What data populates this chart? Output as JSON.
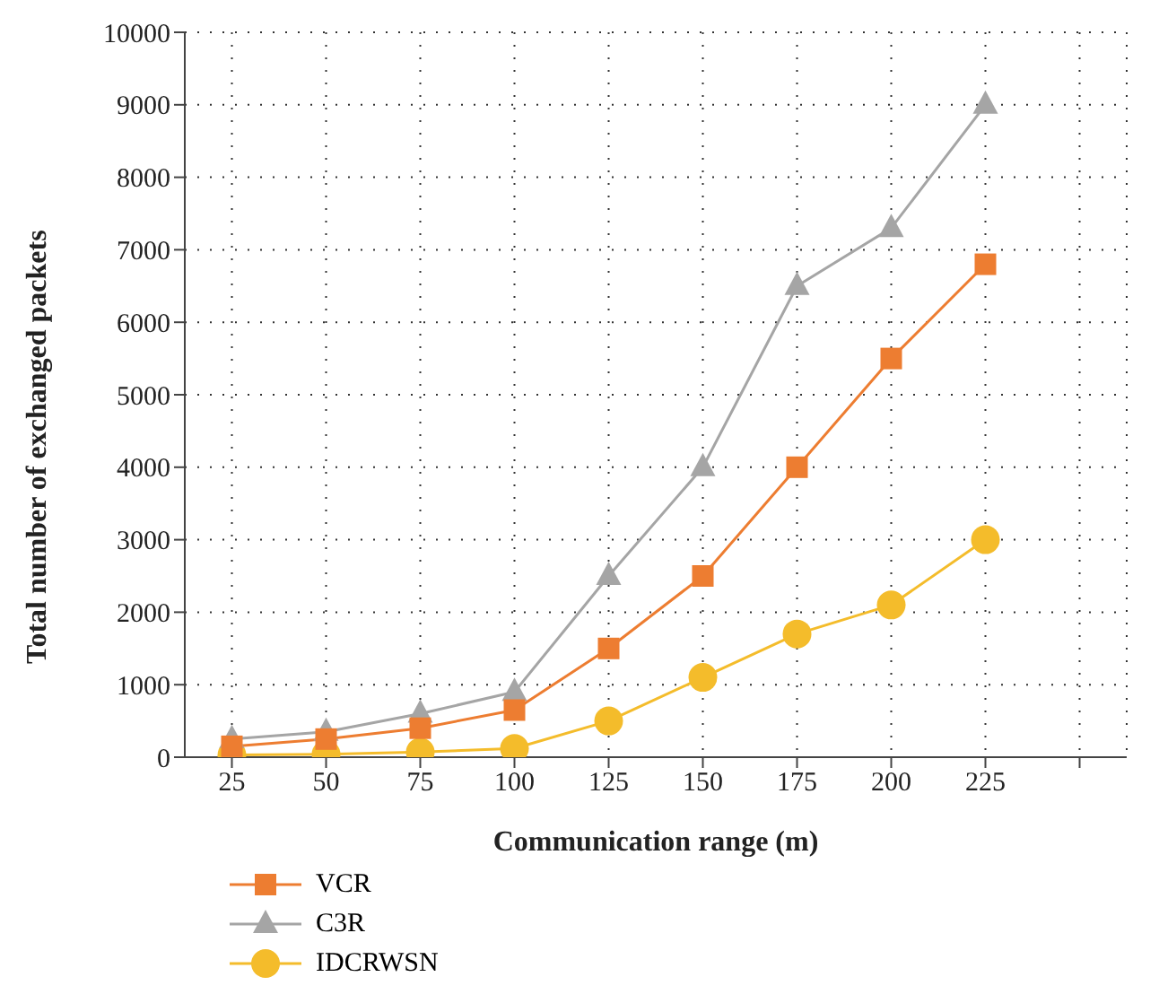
{
  "chart_data": {
    "type": "line",
    "xlabel": "Communication range (m)",
    "ylabel": "Total number of exchanged packets",
    "categories": [
      "25",
      "50",
      "75",
      "100",
      "125",
      "150",
      "175",
      "200",
      "225",
      null
    ],
    "series": [
      {
        "name": "VCR",
        "color": "#ed7d31",
        "marker": "square",
        "values": [
          150,
          250,
          400,
          650,
          1500,
          2500,
          4000,
          5500,
          6800,
          null
        ]
      },
      {
        "name": "C3R",
        "color": "#a5a5a5",
        "marker": "triangle",
        "values": [
          250,
          350,
          600,
          900,
          2500,
          4000,
          6500,
          7300,
          9000,
          null
        ]
      },
      {
        "name": "IDCRWSN",
        "color": "#f4bc2b",
        "marker": "circle",
        "values": [
          30,
          40,
          70,
          120,
          500,
          1100,
          1700,
          2100,
          3000,
          null
        ]
      }
    ],
    "ylim": [
      0,
      10000
    ],
    "yticks": [
      0,
      1000,
      2000,
      3000,
      4000,
      5000,
      6000,
      7000,
      8000,
      9000,
      10000
    ],
    "grid": true,
    "legend": "bottom left"
  }
}
